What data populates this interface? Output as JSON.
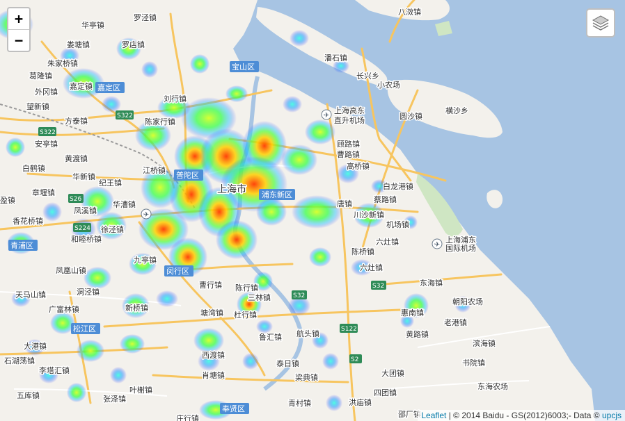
{
  "controls": {
    "zoom_in": "+",
    "zoom_out": "−",
    "layers_icon": "layers-icon"
  },
  "attribution": {
    "leaflet": "Leaflet",
    "middle": " | © 2014 Baidu - GS(2012)6003;- Data © ",
    "upcjs": "upcjs"
  },
  "colors": {
    "water": "#a7c4e3",
    "land": "#f3f1ec",
    "road": "#f7c55f",
    "district_badge": "#4d8dd6",
    "link": "#0078a8"
  },
  "places": [
    {
      "id": "luojingzhen",
      "text": "罗泾镇"
    },
    {
      "id": "bajiaozhen",
      "text": "八滧镇"
    },
    {
      "id": "huatingzhen",
      "text": "华亭镇"
    },
    {
      "id": "luodianzhen",
      "text": "罗店镇"
    },
    {
      "id": "baoshanqu",
      "text": "宝山区"
    },
    {
      "id": "jiaozhenzhen",
      "text": "娄塘镇"
    },
    {
      "id": "zhujiaqiao",
      "text": "朱家桥镇"
    },
    {
      "id": "panshizhen",
      "text": "潘石镇"
    },
    {
      "id": "geilongzhen",
      "text": "葛隆镇"
    },
    {
      "id": "changxingxiang",
      "text": "长兴乡"
    },
    {
      "id": "jiadingzhen",
      "text": "嘉定镇"
    },
    {
      "id": "jiadingqu",
      "text": "嘉定区"
    },
    {
      "id": "xiaonongchang",
      "text": "小农场"
    },
    {
      "id": "waigangzhen",
      "text": "外冈镇"
    },
    {
      "id": "wangxinzhen",
      "text": "望新镇"
    },
    {
      "id": "liuhangzhen",
      "text": "刘行镇"
    },
    {
      "id": "gaodongairport",
      "text": "上海高东"
    },
    {
      "id": "zhishengairport",
      "text": "直升机场"
    },
    {
      "id": "yuanshazhen",
      "text": "圆沙镇"
    },
    {
      "id": "hengshaxiang",
      "text": "横沙乡"
    },
    {
      "id": "fangtaizhen",
      "text": "方泰镇"
    },
    {
      "id": "s322a",
      "text": "S322"
    },
    {
      "id": "chenjiaxing",
      "text": "陈家行镇"
    },
    {
      "id": "s322b",
      "text": "S322"
    },
    {
      "id": "antingzhen",
      "text": "安亭镇"
    },
    {
      "id": "gujingzhen",
      "text": "顾路镇"
    },
    {
      "id": "cailuzhen",
      "text": "曹路镇"
    },
    {
      "id": "huangduzhen",
      "text": "黄渡镇"
    },
    {
      "id": "baihezhen",
      "text": "白鹤镇"
    },
    {
      "id": "jiangqiaozhen",
      "text": "江桥镇"
    },
    {
      "id": "putuoqu",
      "text": "普陀区"
    },
    {
      "id": "hanghuazhen",
      "text": "华新镇"
    },
    {
      "id": "jiwangzhen",
      "text": "纪王镇"
    },
    {
      "id": "shanghaishi",
      "text": "上海市"
    },
    {
      "id": "gaoqiaozhen",
      "text": "高桥镇"
    },
    {
      "id": "bailongzhen",
      "text": "白龙港镇"
    },
    {
      "id": "zhangyanzhen",
      "text": "章堰镇"
    },
    {
      "id": "yingzhen",
      "text": "盈镇"
    },
    {
      "id": "huacaozhen",
      "text": "华漕镇"
    },
    {
      "id": "pudongxinqu",
      "text": "浦东新区"
    },
    {
      "id": "tangzhen",
      "text": "唐镇"
    },
    {
      "id": "cailuzhen2",
      "text": "蔡路镇"
    },
    {
      "id": "fengxizhen",
      "text": "凤溪镇"
    },
    {
      "id": "s26",
      "text": "S26"
    },
    {
      "id": "xiangqiaozhen",
      "text": "香花桥镇"
    },
    {
      "id": "s224",
      "text": "S224"
    },
    {
      "id": "xujingzhen",
      "text": "徐泾镇"
    },
    {
      "id": "chuanshazhen",
      "text": "川沙新镇"
    },
    {
      "id": "jichangzhen",
      "text": "机场镇"
    },
    {
      "id": "qingpuqu",
      "text": "青浦区"
    },
    {
      "id": "heqiaozhen",
      "text": "和睦桥镇"
    },
    {
      "id": "pudongairport1",
      "text": "上海浦东"
    },
    {
      "id": "pudongairport2",
      "text": "国际机场"
    },
    {
      "id": "liuzaozhen",
      "text": "六灶镇"
    },
    {
      "id": "jiutingzhen",
      "text": "九亭镇"
    },
    {
      "id": "chenqiaozhen",
      "text": "陈桥镇"
    },
    {
      "id": "fenghuangshan",
      "text": "凤凰山镇"
    },
    {
      "id": "minhangqu",
      "text": "闵行区"
    },
    {
      "id": "dongjingzhen",
      "text": "洞泾镇"
    },
    {
      "id": "liuzaozhen2",
      "text": "六灶镇"
    },
    {
      "id": "caoxingzhen",
      "text": "曹行镇"
    },
    {
      "id": "chenxingzhen",
      "text": "陈行镇"
    },
    {
      "id": "s32",
      "text": "S32"
    },
    {
      "id": "donghaizhen",
      "text": "东海镇"
    },
    {
      "id": "tianmashan",
      "text": "天马山镇"
    },
    {
      "id": "s32b",
      "text": "S32"
    },
    {
      "id": "sanlinzhen",
      "text": "三林镇"
    },
    {
      "id": "guangfulin",
      "text": "广富林镇"
    },
    {
      "id": "xinqiaozhen",
      "text": "新桥镇"
    },
    {
      "id": "tangwanzhen",
      "text": "塘湾镇"
    },
    {
      "id": "duhangzhen",
      "text": "杜行镇"
    },
    {
      "id": "huinanzhen",
      "text": "惠南镇"
    },
    {
      "id": "laogangzhen",
      "text": "老港镇"
    },
    {
      "id": "chaoyangnongchang",
      "text": "朝阳农场"
    },
    {
      "id": "songjiangqu",
      "text": "松江区"
    },
    {
      "id": "luhuizhen",
      "text": "鲁汇镇"
    },
    {
      "id": "s122",
      "text": "S122"
    },
    {
      "id": "hangtouzhen",
      "text": "航头镇"
    },
    {
      "id": "huangluzhen",
      "text": "黄路镇"
    },
    {
      "id": "binhaizhen",
      "text": "滨海镇"
    },
    {
      "id": "dagangzhen",
      "text": "大港镇"
    },
    {
      "id": "xiduzhen",
      "text": "西渡镇"
    },
    {
      "id": "s2",
      "text": "S2"
    },
    {
      "id": "shijinzhen",
      "text": "石湖荡镇"
    },
    {
      "id": "taizhen",
      "text": "泰日镇"
    },
    {
      "id": "shuyuanzhen",
      "text": "书院镇"
    },
    {
      "id": "lixiaqiao",
      "text": "李塔汇镇"
    },
    {
      "id": "xiaotangzhen",
      "text": "肖塘镇"
    },
    {
      "id": "liangdianzhen",
      "text": "梁典镇"
    },
    {
      "id": "datuanzhen",
      "text": "大团镇"
    },
    {
      "id": "wukuzhen",
      "text": "五库镇"
    },
    {
      "id": "yeshuzhen",
      "text": "叶榭镇"
    },
    {
      "id": "donghaizhen2",
      "text": "东海农场"
    },
    {
      "id": "zhangzezhen",
      "text": "张泽镇"
    },
    {
      "id": "sitauanzhen",
      "text": "四团镇"
    },
    {
      "id": "fengxianqu",
      "text": "奉贤区"
    },
    {
      "id": "qingcunzhen",
      "text": "青村镇"
    },
    {
      "id": "hongmiaozhen",
      "text": "洪庙镇"
    },
    {
      "id": "zhuangxingzhen",
      "text": "庄行镇"
    },
    {
      "id": "dajing",
      "text": "邵厂镇"
    }
  ]
}
